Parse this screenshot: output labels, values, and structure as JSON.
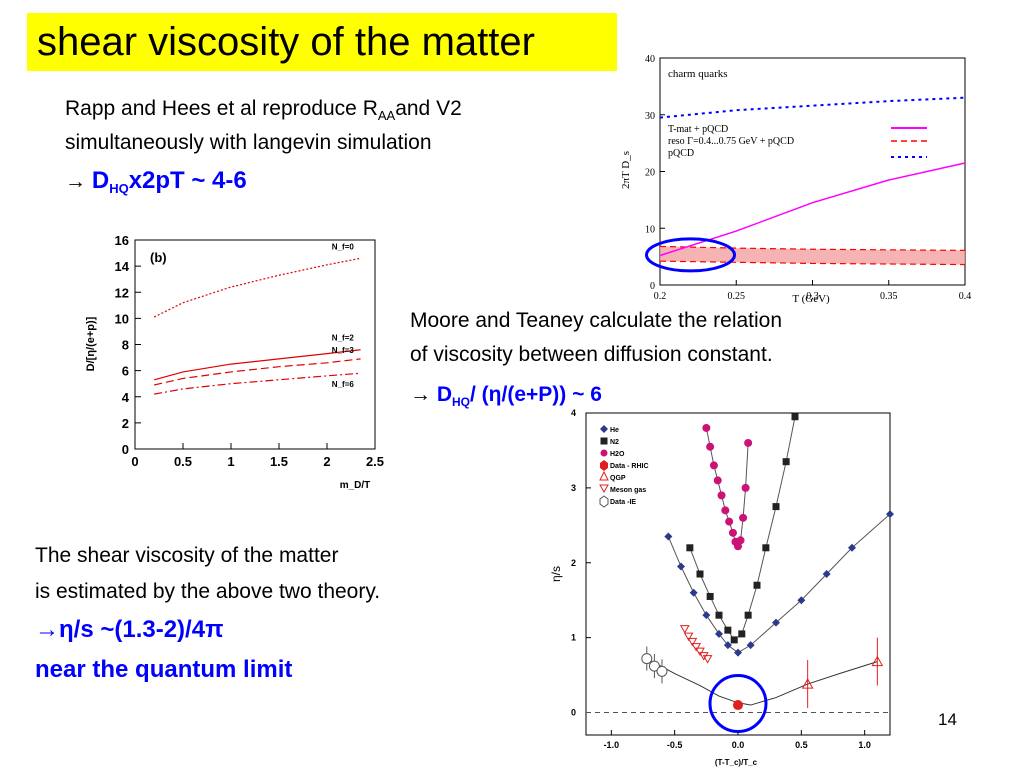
{
  "slide": {
    "title": "shear viscosity of the matter",
    "page_number": "14",
    "para1": {
      "line1_pre": "Rapp and Hees et al reproduce R",
      "line1_sub": "AA",
      "line1_post": "and V2",
      "line2": "simultaneously with langevin simulation",
      "arrow": "→",
      "result_main": "D",
      "result_sub": "HQ",
      "result_post": "x2pT ~ 4-6"
    },
    "para2": {
      "line1": "Moore and  Teaney calculate the relation",
      "line2": "of viscosity between diffusion constant.",
      "arrow": "→",
      "result_main": "D",
      "result_sub": "HQ",
      "result_post": "/ (η/(e+P)) ~ 6"
    },
    "para3": {
      "line1": "The shear viscosity of the matter",
      "line2": "is estimated by the above two theory.",
      "line3_arrow": "→",
      "line3": "η/s ~(1.3-2)/4π",
      "line4": "near the quantum limit"
    }
  },
  "chart_data": [
    {
      "type": "line",
      "panel": "charm quarks",
      "title": "charm quarks",
      "xlabel": "T (GeV)",
      "ylabel": "2πT D_s",
      "xlim": [
        0.2,
        0.4
      ],
      "ylim": [
        0,
        40
      ],
      "xticks": [
        "0.2",
        "0.25",
        "0.3",
        "0.35",
        "0.4"
      ],
      "yticks": [
        "0",
        "10",
        "20",
        "30",
        "40"
      ],
      "legend": [
        "T-mat + pQCD",
        "reso Γ=0.4...0.75 GeV + pQCD",
        "pQCD"
      ],
      "colors": {
        "tmat": "#ff00ff",
        "reso": "#ff0000",
        "pqcd": "#0000ff",
        "highlight": "#0000ff"
      },
      "series": [
        {
          "name": "T-mat + pQCD",
          "x": [
            0.2,
            0.25,
            0.3,
            0.35,
            0.4
          ],
          "y": [
            5.2,
            9.5,
            14.5,
            18.5,
            21.5
          ]
        },
        {
          "name": "reso Γ=0.4...0.75 GeV + pQCD",
          "x": [
            0.2,
            0.25,
            0.3,
            0.35,
            0.4
          ],
          "y_low": [
            4.2,
            4.0,
            3.8,
            3.7,
            3.6
          ],
          "y_high": [
            6.8,
            6.5,
            6.3,
            6.2,
            6.1
          ]
        },
        {
          "name": "pQCD",
          "x": [
            0.2,
            0.25,
            0.3,
            0.35,
            0.4
          ],
          "y": [
            29.5,
            30.8,
            31.6,
            32.4,
            33.0
          ]
        }
      ]
    },
    {
      "type": "line",
      "panel_label": "(b)",
      "xlabel": "m_D/T",
      "ylabel": "D/[η/(e+p)]",
      "xlim": [
        0,
        2.5
      ],
      "ylim": [
        0,
        16
      ],
      "xticks": [
        "0",
        "0.5",
        "1",
        "1.5",
        "2",
        "2.5"
      ],
      "yticks": [
        "0",
        "2",
        "4",
        "6",
        "8",
        "10",
        "12",
        "14",
        "16"
      ],
      "series": [
        {
          "name": "N_f=0",
          "x": [
            0.2,
            0.5,
            1.0,
            1.5,
            2.0,
            2.35
          ],
          "y": [
            10.1,
            11.2,
            12.4,
            13.3,
            14.1,
            14.6
          ]
        },
        {
          "name": "N_f=2",
          "x": [
            0.2,
            0.5,
            1.0,
            1.5,
            2.0,
            2.35
          ],
          "y": [
            5.3,
            5.9,
            6.5,
            6.9,
            7.3,
            7.6
          ]
        },
        {
          "name": "N_f=3",
          "x": [
            0.2,
            0.5,
            1.0,
            1.5,
            2.0,
            2.35
          ],
          "y": [
            4.9,
            5.4,
            5.9,
            6.3,
            6.6,
            6.9
          ]
        },
        {
          "name": "N_f=6",
          "x": [
            0.2,
            0.5,
            1.0,
            1.5,
            2.0,
            2.35
          ],
          "y": [
            4.2,
            4.6,
            5.0,
            5.3,
            5.6,
            5.8
          ]
        }
      ]
    },
    {
      "type": "scatter",
      "xlabel": "(T-T_c)/T_c",
      "ylabel": "η/s",
      "xlim": [
        -1.2,
        1.2
      ],
      "ylim": [
        -0.3,
        4
      ],
      "xticks": [
        "-1.0",
        "-0.5",
        "0.0",
        "0.5",
        "1.0"
      ],
      "yticks": [
        "0",
        "1",
        "2",
        "3",
        "4"
      ],
      "legend": [
        "He",
        "N2",
        "H2O",
        "Data - RHIC",
        "QGP",
        "Meson gas",
        "Data -IE"
      ],
      "series": [
        {
          "name": "He",
          "x": [
            -0.55,
            -0.45,
            -0.35,
            -0.25,
            -0.15,
            -0.08,
            0.0,
            0.1,
            0.3,
            0.5,
            0.7,
            0.9,
            1.2
          ],
          "y": [
            2.35,
            1.95,
            1.6,
            1.3,
            1.05,
            0.9,
            0.8,
            0.9,
            1.2,
            1.5,
            1.85,
            2.2,
            2.65
          ]
        },
        {
          "name": "N2",
          "x": [
            -0.38,
            -0.3,
            -0.22,
            -0.15,
            -0.08,
            -0.03,
            0.03,
            0.08,
            0.15,
            0.22,
            0.3,
            0.38,
            0.45
          ],
          "y": [
            2.2,
            1.85,
            1.55,
            1.3,
            1.1,
            0.97,
            1.05,
            1.3,
            1.7,
            2.2,
            2.75,
            3.35,
            3.95
          ]
        },
        {
          "name": "H2O",
          "x": [
            -0.25,
            -0.22,
            -0.19,
            -0.16,
            -0.13,
            -0.1,
            -0.07,
            -0.04,
            -0.02,
            0.0,
            0.02,
            0.04,
            0.06,
            0.08
          ],
          "y": [
            3.8,
            3.55,
            3.3,
            3.1,
            2.9,
            2.7,
            2.55,
            2.4,
            2.28,
            2.22,
            2.3,
            2.6,
            3.0,
            3.6
          ]
        },
        {
          "name": "Data - RHIC",
          "x": [
            0.0
          ],
          "y": [
            0.1
          ]
        },
        {
          "name": "QGP",
          "x": [
            0.55,
            1.1
          ],
          "y": [
            0.38,
            0.68
          ]
        },
        {
          "name": "Meson gas",
          "x": [
            -0.42,
            -0.39,
            -0.36,
            -0.33,
            -0.3,
            -0.27,
            -0.24
          ],
          "y": [
            1.12,
            1.02,
            0.95,
            0.88,
            0.82,
            0.76,
            0.72
          ]
        },
        {
          "name": "Data -IE",
          "x": [
            -0.72,
            -0.66,
            -0.6
          ],
          "y": [
            0.72,
            0.62,
            0.55
          ]
        }
      ]
    }
  ]
}
